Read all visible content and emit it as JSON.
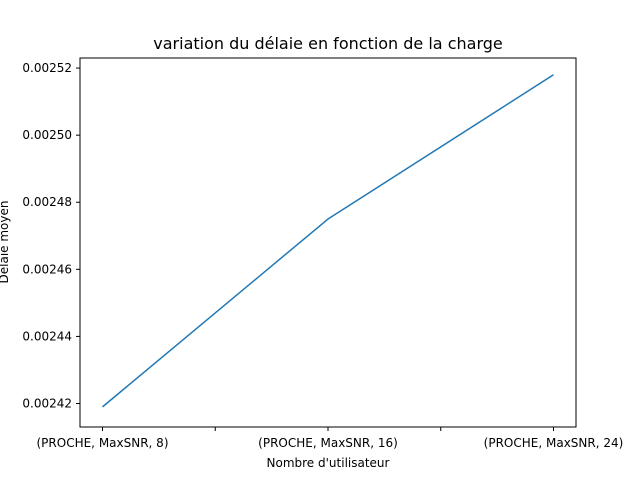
{
  "chart_data": {
    "type": "line",
    "title": "variation du délaie en fonction de la charge",
    "xlabel": "Nombre d'utilisateur",
    "ylabel": "Délaie moyen",
    "categories": [
      "(PROCHE, MaxSNR, 8)",
      "(PROCHE, MaxSNR, 16)",
      "(PROCHE, MaxSNR, 24)"
    ],
    "series": [
      {
        "values": [
          0.002419,
          0.002475,
          0.002518
        ],
        "color": "#1f77b4"
      }
    ],
    "yticks": [
      "0.00242",
      "0.00244",
      "0.00246",
      "0.00248",
      "0.00250",
      "0.00252"
    ],
    "ylim": [
      0.002413,
      0.002523
    ],
    "grid": false,
    "legend": "none"
  }
}
